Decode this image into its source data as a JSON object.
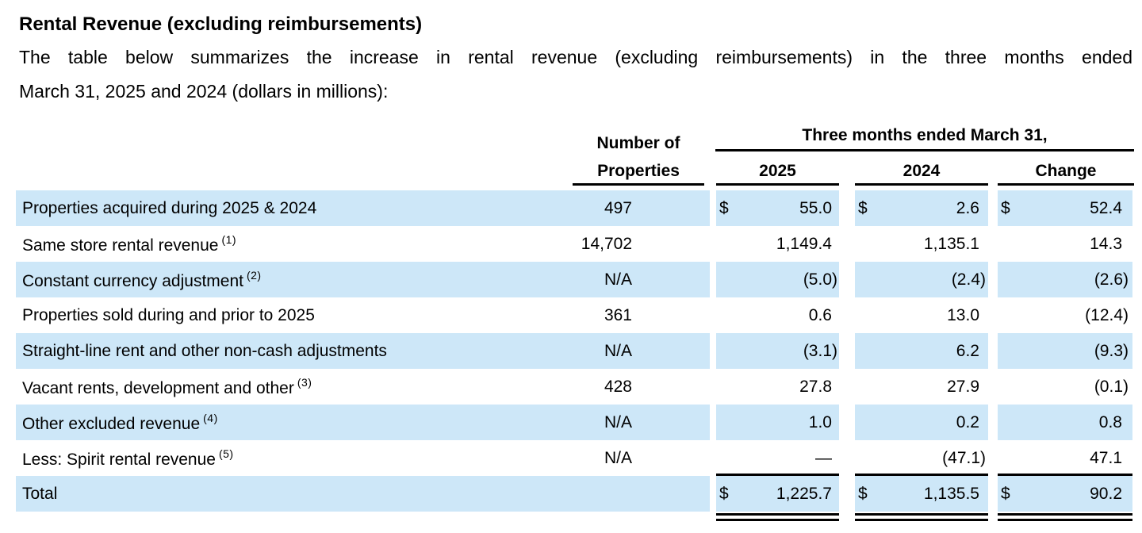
{
  "title": "Rental Revenue (excluding reimbursements)",
  "intro": {
    "line1": "The table below summarizes the increase in rental revenue (excluding reimbursements) in the three months ended",
    "line2": "March 31, 2025 and 2024 (dollars in millions):"
  },
  "table": {
    "col_headers": {
      "properties_line1": "Number of",
      "properties_line2": "Properties",
      "span_header": "Three months ended March 31,",
      "year_2025": "2025",
      "year_2024": "2024",
      "change": "Change"
    },
    "currency_symbol": "$",
    "rows": [
      {
        "label": "Properties acquired during 2025 & 2024",
        "footnote": "",
        "props": "497",
        "y2025": "55.0",
        "y2024": "2.6",
        "change": "52.4",
        "dollar": true,
        "shaded": true,
        "rule_below": false,
        "total": false
      },
      {
        "label": "Same store rental revenue",
        "footnote": "(1)",
        "props": "14,702",
        "y2025": "1,149.4",
        "y2024": "1,135.1",
        "change": "14.3",
        "dollar": false,
        "shaded": false,
        "rule_below": false,
        "total": false
      },
      {
        "label": "Constant currency adjustment",
        "footnote": "(2)",
        "props": "N/A",
        "y2025": "(5.0)",
        "y2024": "(2.4)",
        "change": "(2.6)",
        "dollar": false,
        "shaded": true,
        "rule_below": false,
        "total": false
      },
      {
        "label": "Properties sold during and prior to 2025",
        "footnote": "",
        "props": "361",
        "y2025": "0.6",
        "y2024": "13.0",
        "change": "(12.4)",
        "dollar": false,
        "shaded": false,
        "rule_below": false,
        "total": false
      },
      {
        "label": "Straight-line rent and other non-cash adjustments",
        "footnote": "",
        "props": "N/A",
        "y2025": "(3.1)",
        "y2024": "6.2",
        "change": "(9.3)",
        "dollar": false,
        "shaded": true,
        "rule_below": false,
        "total": false
      },
      {
        "label": "Vacant rents, development and other",
        "footnote": "(3)",
        "props": "428",
        "y2025": "27.8",
        "y2024": "27.9",
        "change": "(0.1)",
        "dollar": false,
        "shaded": false,
        "rule_below": false,
        "total": false
      },
      {
        "label": "Other excluded revenue",
        "footnote": "(4)",
        "props": "N/A",
        "y2025": "1.0",
        "y2024": "0.2",
        "change": "0.8",
        "dollar": false,
        "shaded": true,
        "rule_below": false,
        "total": false
      },
      {
        "label": "Less: Spirit rental revenue",
        "footnote": "(5)",
        "props": "N/A",
        "y2025": "—",
        "y2024": "(47.1)",
        "change": "47.1",
        "dollar": false,
        "shaded": false,
        "rule_below": true,
        "total": false
      },
      {
        "label": "Total",
        "footnote": "",
        "props": "",
        "y2025": "1,225.7",
        "y2024": "1,135.5",
        "change": "90.2",
        "dollar": true,
        "shaded": true,
        "rule_below": false,
        "total": true
      }
    ]
  }
}
